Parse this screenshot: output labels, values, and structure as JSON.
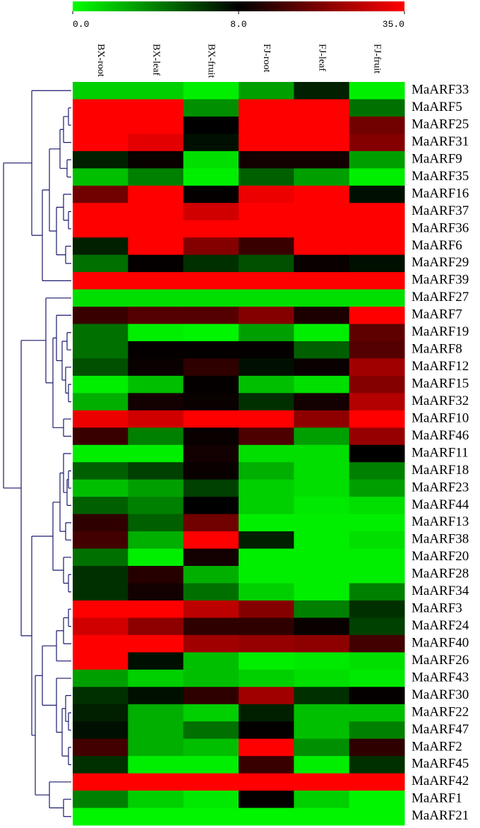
{
  "chart_data": {
    "type": "heatmap",
    "categories": [
      "BX-root",
      "BX-leaf",
      "BX-fruit",
      "FJ-root",
      "FJ-leaf",
      "FJ-fruit"
    ],
    "rows": [
      "MaARF33",
      "MaARF5",
      "MaARF25",
      "MaARF31",
      "MaARF9",
      "MaARF35",
      "MaARF16",
      "MaARF37",
      "MaARF36",
      "MaARF6",
      "MaARF29",
      "MaARF39",
      "MaARF27",
      "MaARF7",
      "MaARF19",
      "MaARF8",
      "MaARF12",
      "MaARF15",
      "MaARF32",
      "MaARF10",
      "MaARF46",
      "MaARF11",
      "MaARF18",
      "MaARF23",
      "MaARF44",
      "MaARF13",
      "MaARF38",
      "MaARF20",
      "MaARF28",
      "MaARF34",
      "MaARF3",
      "MaARF24",
      "MaARF40",
      "MaARF26",
      "MaARF43",
      "MaARF30",
      "MaARF22",
      "MaARF47",
      "MaARF2",
      "MaARF45",
      "MaARF42",
      "MaARF1",
      "MaARF21"
    ],
    "values": [
      [
        1.5,
        1.5,
        0.5,
        3,
        7,
        0.5
      ],
      [
        35,
        35,
        3.5,
        35,
        35,
        4.5
      ],
      [
        35,
        35,
        8,
        35,
        35,
        20
      ],
      [
        35,
        32,
        7.5,
        35,
        35,
        22
      ],
      [
        7,
        9,
        1,
        10,
        10,
        3
      ],
      [
        2,
        4,
        0.5,
        5,
        3,
        0.5
      ],
      [
        20,
        35,
        8.5,
        33,
        35,
        7.5
      ],
      [
        35,
        35,
        30,
        35,
        35,
        35
      ],
      [
        35,
        35,
        35,
        35,
        35,
        35
      ],
      [
        7,
        35,
        22,
        14,
        35,
        35
      ],
      [
        4.5,
        8.5,
        6.5,
        5.5,
        9,
        7.5
      ],
      [
        35,
        35,
        35,
        35,
        35,
        35
      ],
      [
        1,
        1,
        1,
        1,
        1,
        1
      ],
      [
        14,
        17,
        17,
        22,
        11,
        35
      ],
      [
        4.5,
        0.5,
        0.3,
        3,
        0.5,
        18
      ],
      [
        4.5,
        8.5,
        8.5,
        8.5,
        5,
        17
      ],
      [
        5.5,
        9,
        13,
        7.5,
        9,
        25
      ],
      [
        0.5,
        2,
        8.5,
        2,
        1,
        22
      ],
      [
        2.5,
        10,
        9,
        6.5,
        10,
        27
      ],
      [
        33,
        30,
        35,
        35,
        23,
        35
      ],
      [
        14,
        4,
        9,
        16,
        3,
        24
      ],
      [
        0.5,
        0.5,
        10,
        1,
        1,
        8
      ],
      [
        5,
        6,
        9,
        2.5,
        1,
        4
      ],
      [
        2,
        3,
        6,
        1.5,
        1,
        3
      ],
      [
        5,
        4,
        8,
        1.5,
        0.7,
        1
      ],
      [
        13,
        5,
        20,
        0.5,
        0.5,
        0.5
      ],
      [
        15,
        2.5,
        35,
        7,
        0.5,
        1
      ],
      [
        4.5,
        0.5,
        10,
        0.5,
        0.5,
        0.5
      ],
      [
        6.5,
        12,
        2.5,
        0.5,
        0.5,
        0.5
      ],
      [
        6.5,
        10,
        4.5,
        1.5,
        0.5,
        4
      ],
      [
        35,
        35,
        28,
        22,
        4,
        6.5
      ],
      [
        30,
        23,
        13,
        13,
        9,
        6
      ],
      [
        35,
        35,
        25,
        24,
        23,
        15
      ],
      [
        35,
        7.5,
        2,
        0.5,
        0.7,
        1
      ],
      [
        3,
        1.5,
        2,
        1.5,
        1,
        0.7
      ],
      [
        6.5,
        7.5,
        13,
        25,
        6.5,
        8.5
      ],
      [
        7,
        2.5,
        1.5,
        7,
        2,
        2
      ],
      [
        7.5,
        2.5,
        4.5,
        8.5,
        2,
        4
      ],
      [
        15,
        2.5,
        2,
        35,
        3.5,
        13
      ],
      [
        6.5,
        0.5,
        0.5,
        14,
        0.5,
        6.5
      ],
      [
        35,
        35,
        35,
        35,
        35,
        35
      ],
      [
        4,
        1.5,
        0.7,
        8.5,
        1.5,
        0.3
      ],
      [
        0.3,
        0.3,
        0.3,
        0.3,
        0.3,
        0.3
      ]
    ],
    "zticks": [
      {
        "value": 0,
        "label": "0.0"
      },
      {
        "value": 8,
        "label": "8.0"
      },
      {
        "value": 35,
        "label": "35.0"
      }
    ],
    "colors": [
      "#00ff00",
      "#000000",
      "#ff0000"
    ]
  }
}
